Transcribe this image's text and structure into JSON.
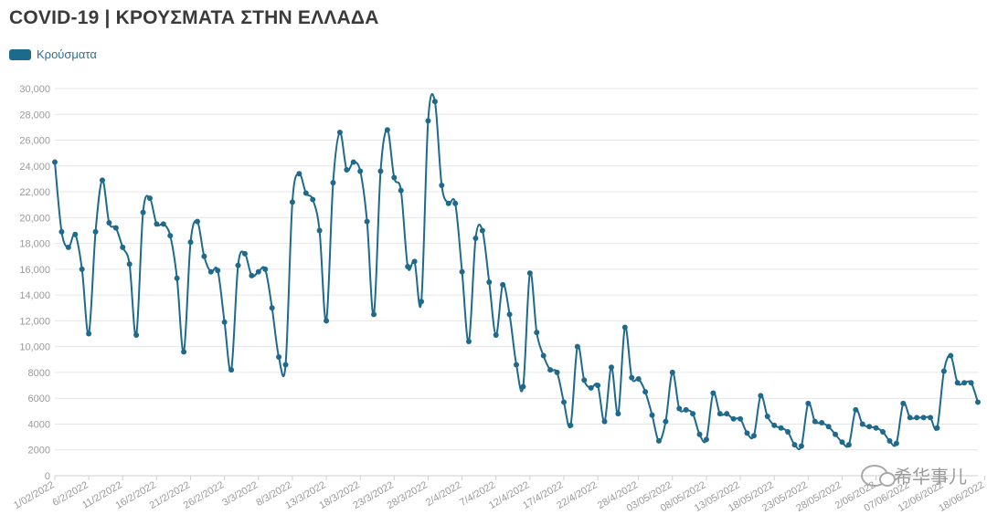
{
  "title": "COVID-19 | ΚΡΟΥΣΜΑΤΑ ΣΤΗΝ ΕΛΛΑΔΑ",
  "legend": {
    "label": "Κρούσματα",
    "color": "#1e6a8c"
  },
  "watermark": "希华事儿",
  "chart_data": {
    "type": "line",
    "title": "COVID-19 | ΚΡΟΥΣΜΑΤΑ ΣΤΗΝ ΕΛΛΑΔΑ",
    "xlabel": "",
    "ylabel": "",
    "ylim": [
      0,
      30000
    ],
    "yticks": [
      0,
      2000,
      4000,
      6000,
      8000,
      10000,
      12000,
      14000,
      16000,
      18000,
      20000,
      22000,
      24000,
      26000,
      28000,
      30000
    ],
    "ytick_labels": [
      "0",
      "2000",
      "4000",
      "6000",
      "8000",
      "10,000",
      "12,000",
      "14,000",
      "16,000",
      "18,000",
      "20,000",
      "22,000",
      "24,000",
      "26,000",
      "28,000",
      "30,000"
    ],
    "x_tick_labels": [
      {
        "label": "1/02/2022",
        "index": 0
      },
      {
        "label": "6/2/2022",
        "index": 5
      },
      {
        "label": "11/2/2022",
        "index": 10
      },
      {
        "label": "16/2/2022",
        "index": 15
      },
      {
        "label": "21/2/2022",
        "index": 20
      },
      {
        "label": "26/2/2022",
        "index": 25
      },
      {
        "label": "3/3/2022",
        "index": 30
      },
      {
        "label": "8/3/2022",
        "index": 35
      },
      {
        "label": "13/3/2022",
        "index": 40
      },
      {
        "label": "18/3/2022",
        "index": 45
      },
      {
        "label": "23/3/2022",
        "index": 50
      },
      {
        "label": "28/3/2022",
        "index": 55
      },
      {
        "label": "2/4/2022",
        "index": 60
      },
      {
        "label": "7/4/2022",
        "index": 65
      },
      {
        "label": "12/4/2022",
        "index": 70
      },
      {
        "label": "17/4/2022",
        "index": 75
      },
      {
        "label": "22/4/2022",
        "index": 80
      },
      {
        "label": "28/4/2022",
        "index": 86
      },
      {
        "label": "03/05/2022",
        "index": 91
      },
      {
        "label": "08/05/2022",
        "index": 96
      },
      {
        "label": "13/05/2022",
        "index": 101
      },
      {
        "label": "18/05/2022",
        "index": 106
      },
      {
        "label": "23/05/2022",
        "index": 111
      },
      {
        "label": "28/05/2022",
        "index": 116
      },
      {
        "label": "2/06/2022",
        "index": 121
      },
      {
        "label": "07/06/2022",
        "index": 126
      },
      {
        "label": "12/06/2022",
        "index": 131
      },
      {
        "label": "18/06/2022",
        "index": 137
      }
    ],
    "series": [
      {
        "name": "Κρούσματα",
        "color": "#1e6a8c",
        "values": [
          24300,
          18900,
          17700,
          18700,
          16000,
          11000,
          18900,
          22900,
          19600,
          19200,
          17700,
          16400,
          10900,
          20400,
          21500,
          19500,
          19500,
          18600,
          15300,
          9600,
          18100,
          19700,
          17000,
          15800,
          15900,
          11900,
          8200,
          16300,
          17200,
          15500,
          15800,
          16000,
          13000,
          9200,
          8600,
          21200,
          23400,
          21900,
          21400,
          19000,
          12000,
          22700,
          26600,
          23700,
          24300,
          23600,
          19700,
          12500,
          23600,
          26800,
          23100,
          22100,
          16200,
          16600,
          13500,
          27500,
          29000,
          22500,
          21100,
          21100,
          15800,
          10400,
          18400,
          19000,
          15000,
          10900,
          14800,
          12500,
          8600,
          6900,
          15700,
          11100,
          9300,
          8200,
          8000,
          5700,
          3900,
          10000,
          7400,
          6800,
          7000,
          4200,
          8400,
          4800,
          11500,
          7600,
          7500,
          6500,
          4700,
          2700,
          4200,
          8000,
          5200,
          5100,
          4800,
          3200,
          2800,
          6400,
          4800,
          4800,
          4400,
          4400,
          3300,
          3100,
          6200,
          4600,
          3900,
          3700,
          3400,
          2400,
          2300,
          5600,
          4200,
          4100,
          3800,
          3200,
          2600,
          2400,
          5100,
          4000,
          3800,
          3700,
          3400,
          2700,
          2500,
          5600,
          4500,
          4500,
          4500,
          4500,
          3700,
          8100,
          9300,
          7200,
          7200,
          7200,
          5700
        ]
      }
    ],
    "grid": true,
    "legend_position": "top-left"
  }
}
